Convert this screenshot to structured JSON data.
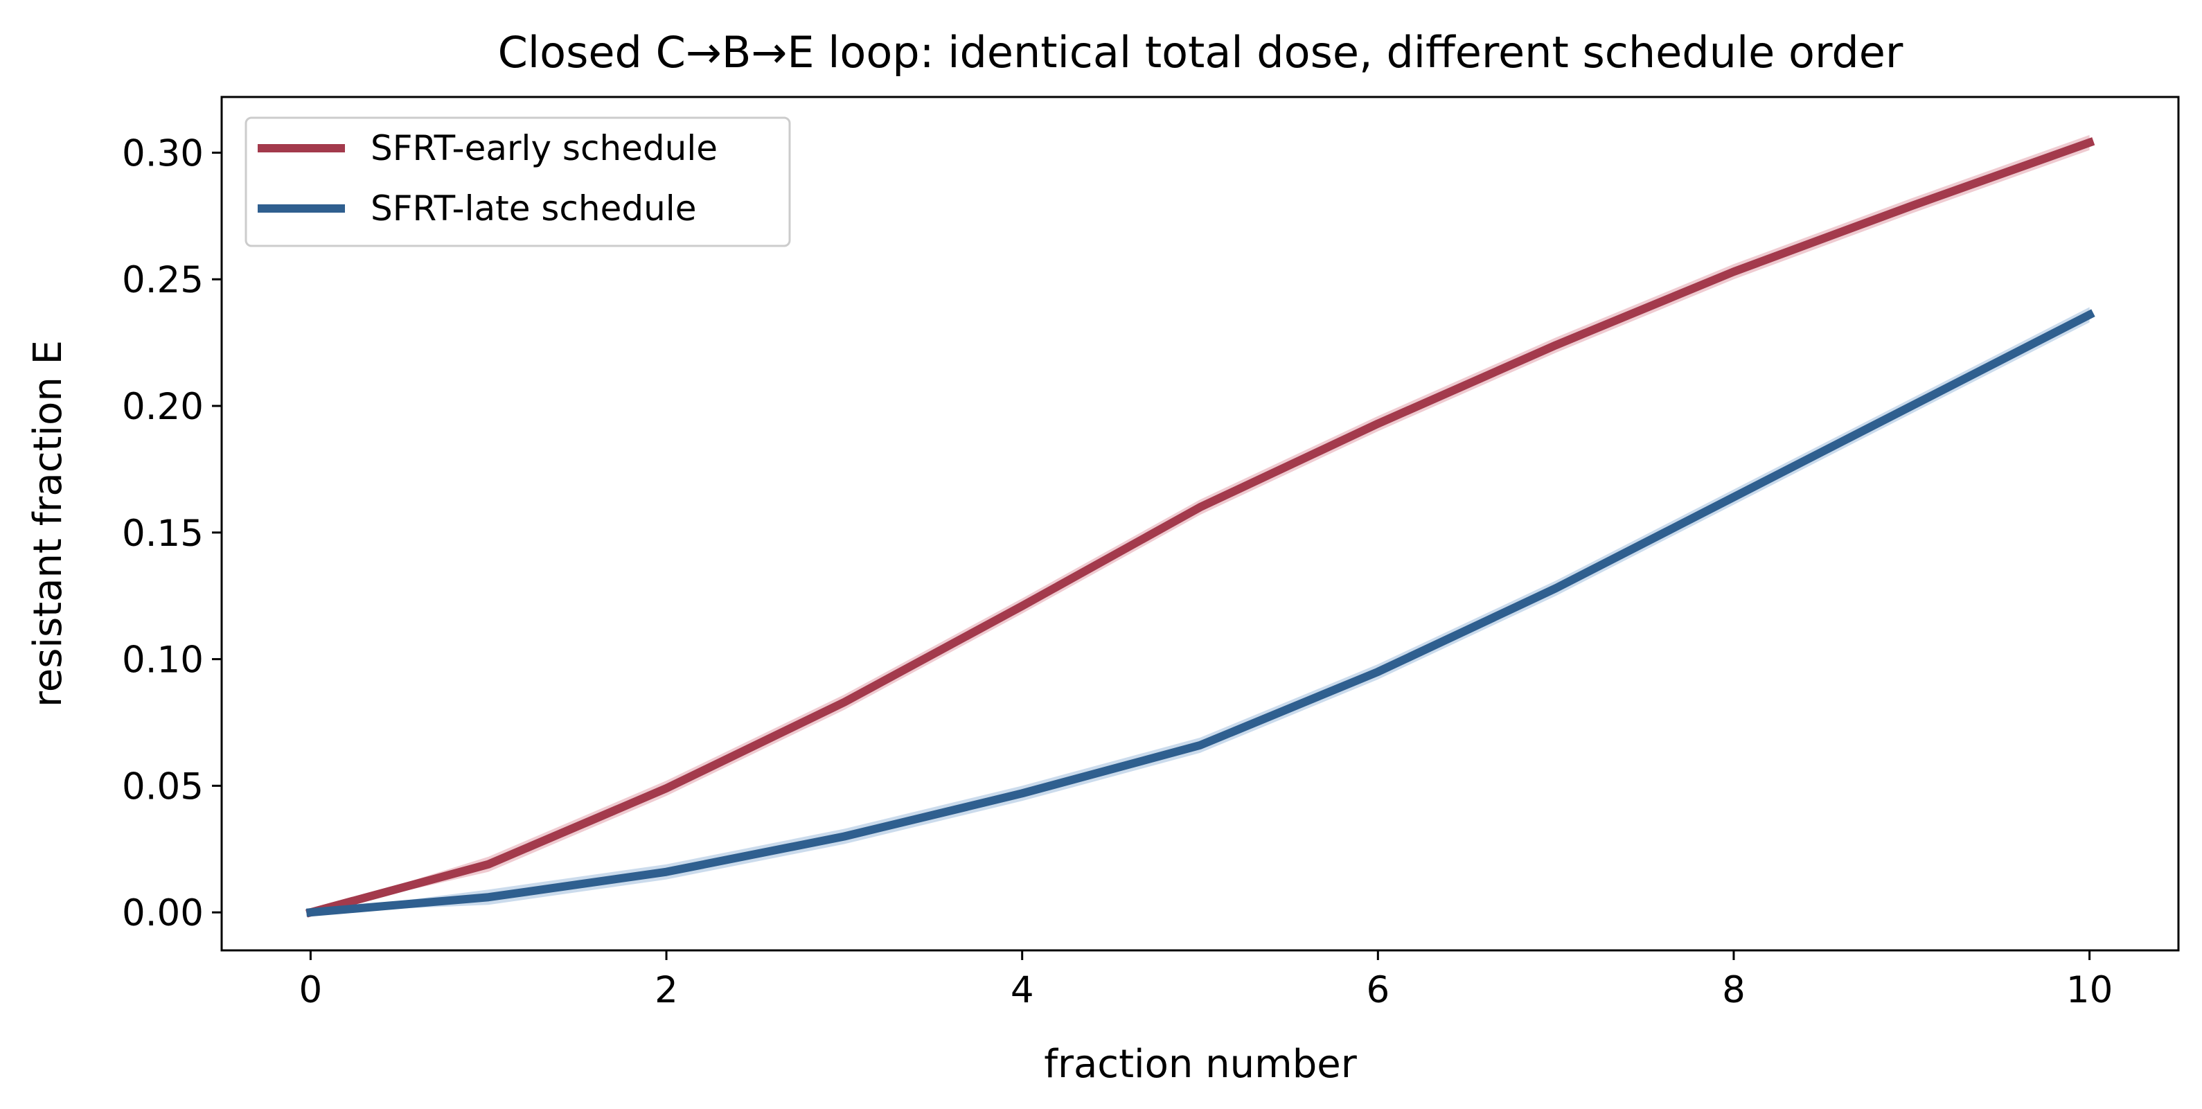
{
  "chart_data": {
    "type": "line",
    "title": "Closed C→B→E loop: identical total dose, different schedule order",
    "xlabel": "fraction number",
    "ylabel": "resistant fraction E",
    "xlim": [
      -0.5,
      10.5
    ],
    "ylim": [
      -0.015,
      0.322
    ],
    "xticks": [
      0,
      2,
      4,
      6,
      8,
      10
    ],
    "xtick_labels": [
      "0",
      "2",
      "4",
      "6",
      "8",
      "10"
    ],
    "yticks": [
      0.0,
      0.05,
      0.1,
      0.15,
      0.2,
      0.25,
      0.3
    ],
    "ytick_labels": [
      "0.00",
      "0.05",
      "0.10",
      "0.15",
      "0.20",
      "0.25",
      "0.30"
    ],
    "grid": false,
    "legend_position": "top-left",
    "x": [
      0,
      1,
      2,
      3,
      4,
      5,
      6,
      7,
      8,
      9,
      10
    ],
    "series": [
      {
        "name": "SFRT-early schedule",
        "color": "#a33a4c",
        "band_color": "#e4a9b3",
        "values": [
          0.0,
          0.019,
          0.049,
          0.083,
          0.121,
          0.16,
          0.193,
          0.224,
          0.253,
          0.279,
          0.304
        ],
        "band_halfwidth": 0.003
      },
      {
        "name": "SFRT-late schedule",
        "color": "#2f5f8f",
        "band_color": "#a9c3e0",
        "values": [
          0.0,
          0.006,
          0.016,
          0.03,
          0.047,
          0.066,
          0.095,
          0.128,
          0.164,
          0.2,
          0.236
        ],
        "band_halfwidth": 0.003
      }
    ]
  }
}
